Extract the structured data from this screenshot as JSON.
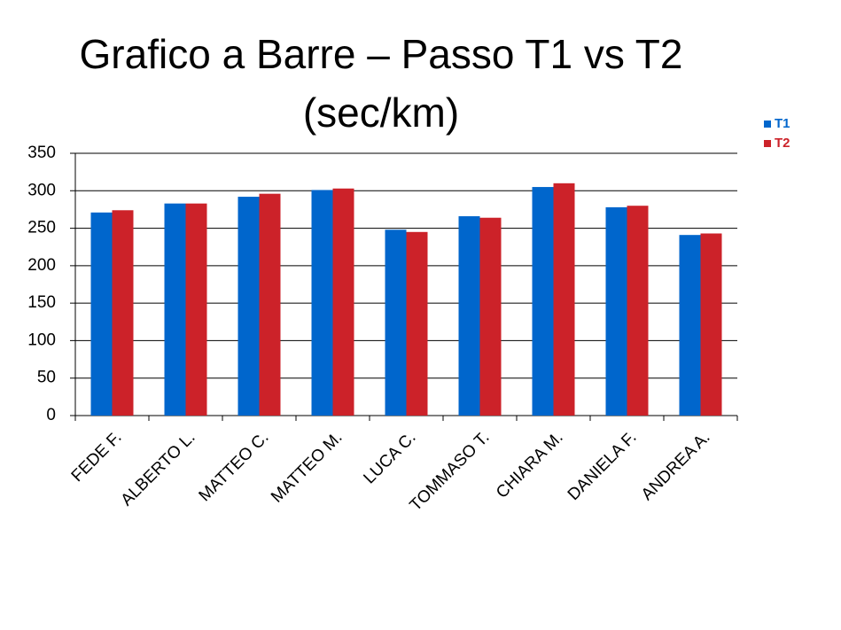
{
  "chart_data": {
    "type": "bar",
    "title": "Grafico a Barre – Passo T1 vs T2 (sec/km)",
    "categories": [
      "FEDE F.",
      "ALBERTO L.",
      "MATTEO C.",
      "MATTEO M.",
      "LUCA C.",
      "TOMMASO T.",
      "CHIARA M.",
      "DANIELA F.",
      "ANDREA A."
    ],
    "series": [
      {
        "name": "T1",
        "color": "#0066cc",
        "values": [
          271,
          283,
          292,
          301,
          248,
          266,
          305,
          278,
          241
        ]
      },
      {
        "name": "T2",
        "color": "#cc2229",
        "values": [
          274,
          283,
          296,
          303,
          245,
          264,
          310,
          280,
          243
        ]
      }
    ],
    "ylim": [
      0,
      350
    ],
    "yticks": [
      0,
      50,
      100,
      150,
      200,
      250,
      300,
      350
    ],
    "grid": true,
    "legend": "top-right"
  }
}
